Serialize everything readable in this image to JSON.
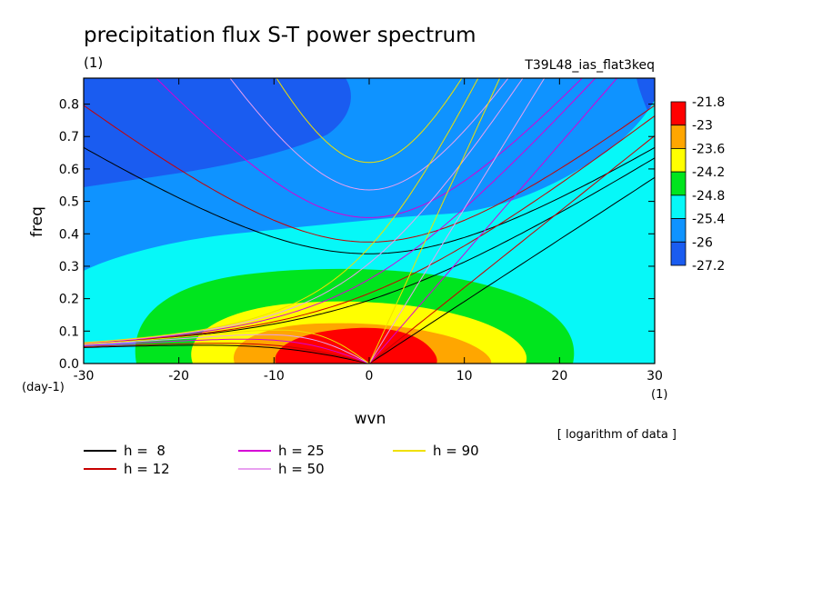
{
  "colors": {
    "c_darkblue": "#1a5cf0",
    "c_blue": "#0f93ff",
    "c_cyan": "#06f8f8",
    "c_green": "#00e51e",
    "c_yellow": "#ffff00",
    "c_orange": "#ffa600",
    "c_red": "#ff0000",
    "line_h8": "#000000",
    "line_h12": "#c80000",
    "line_h25": "#d600d6",
    "line_h50": "#e8a0f0",
    "line_h90": "#f0e000"
  },
  "chart_data": {
    "type": "heatmap",
    "title": "precipitation flux S-T power spectrum",
    "subtitle_left": "(1)",
    "subtitle_right": "T39L48_ias_flat3keq",
    "xlabel": "wvn",
    "ylabel": "freq",
    "x_unit": "(1)",
    "y_unit": "(day-1)",
    "xlim": [
      -30,
      30
    ],
    "ylim": [
      0,
      0.88
    ],
    "x_ticks": [
      "-30",
      "-20",
      "-10",
      "0",
      "10",
      "20",
      "30"
    ],
    "x_tick_values": [
      -30,
      -20,
      -10,
      0,
      10,
      20,
      30
    ],
    "y_ticks": [
      "0.0",
      "0.1",
      "0.2",
      "0.3",
      "0.4",
      "0.5",
      "0.6",
      "0.7",
      "0.8"
    ],
    "y_tick_values": [
      0,
      0.1,
      0.2,
      0.3,
      0.4,
      0.5,
      0.6,
      0.7,
      0.8
    ],
    "colorbar": {
      "labels": [
        "-21.8",
        "-23",
        "-23.6",
        "-24.2",
        "-24.8",
        "-25.4",
        "-26",
        "-27.2"
      ],
      "colors": [
        "#ff0000",
        "#ffa600",
        "#ffff00",
        "#00e51e",
        "#06f8f8",
        "#0f93ff",
        "#1a5cf0"
      ]
    },
    "note": "[ logarithm of data ]",
    "peak": {
      "wvn": 0,
      "freq": 0
    },
    "dispersion_curves": [
      {
        "name": "h =  8",
        "color": "#000000",
        "h": 8
      },
      {
        "name": "h = 12",
        "color": "#c80000",
        "h": 12
      },
      {
        "name": "h = 25",
        "color": "#d600d6",
        "h": 25
      },
      {
        "name": "h = 50",
        "color": "#e8a0f0",
        "h": 50
      },
      {
        "name": "h = 90",
        "color": "#f0e000",
        "h": 90
      }
    ]
  }
}
